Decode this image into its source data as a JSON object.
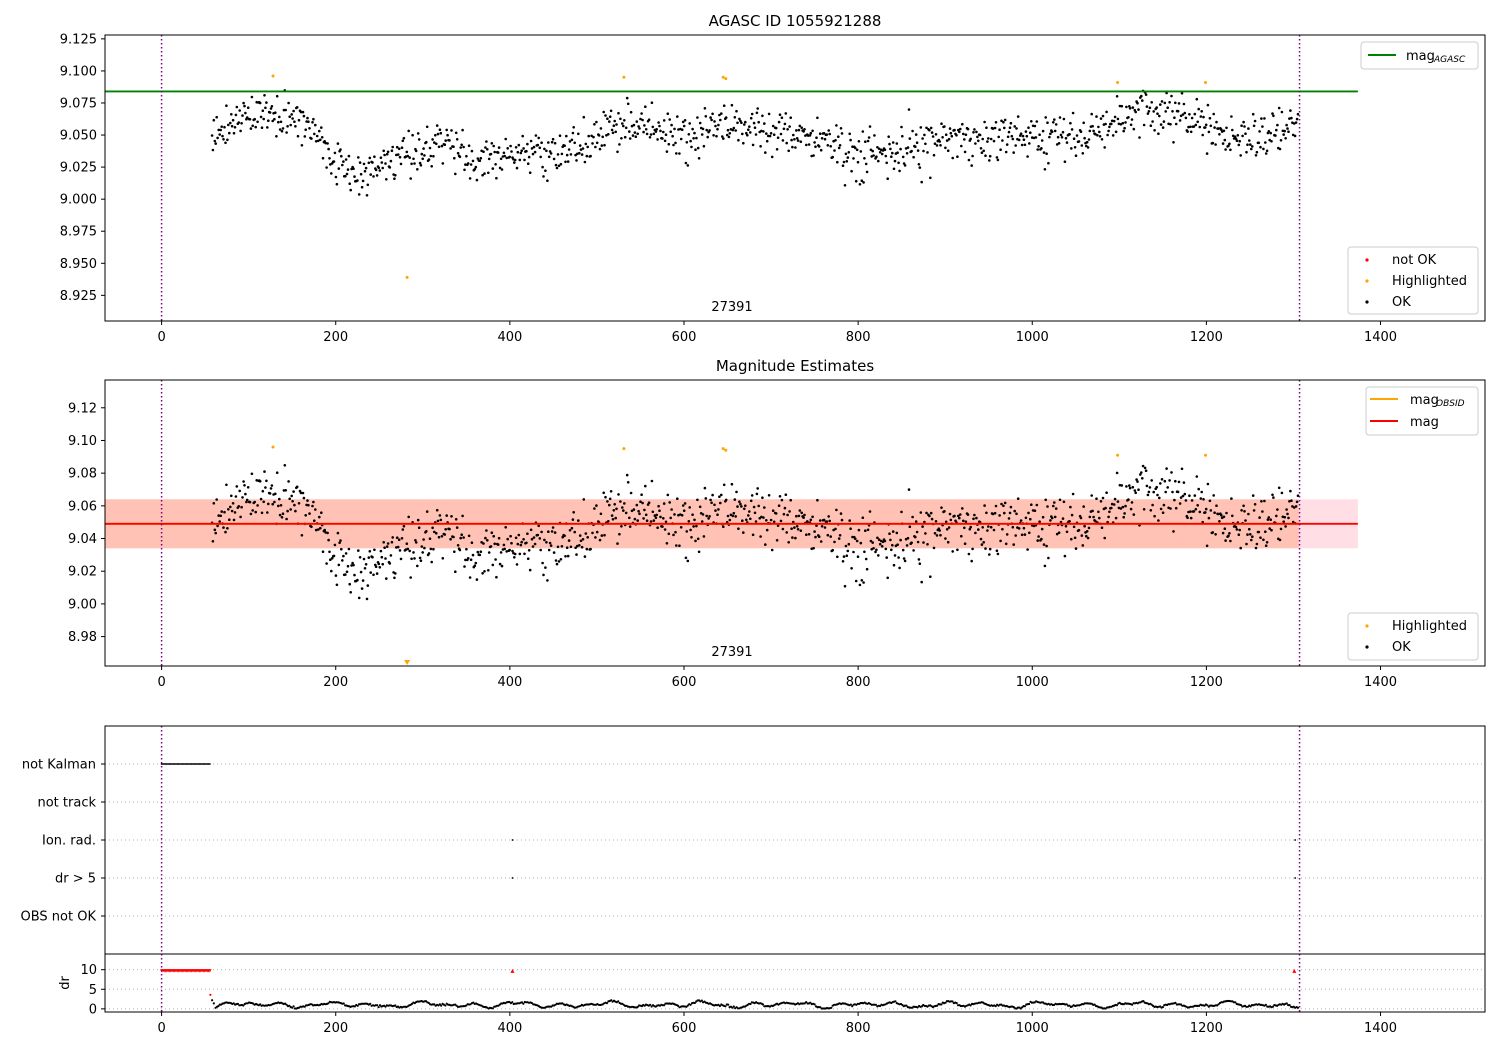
{
  "colors": {
    "ok": "#000000",
    "highlighted": "#ffa500",
    "not_ok": "#ff0000",
    "agasc_line": "#008000",
    "obsid_line": "#ffa500",
    "mag_line": "#ff0000",
    "band_outer": "#ffc0cb",
    "band_inner": "#ffa07a",
    "vline": "#800080"
  },
  "chart_data": [
    {
      "type": "scatter",
      "title": "AGASC ID 1055921288",
      "xlim": [
        -65,
        1520
      ],
      "ylim": [
        8.905,
        9.128
      ],
      "x_ticks": [
        0,
        200,
        400,
        600,
        800,
        1000,
        1200,
        1400
      ],
      "y_ticks": [
        8.925,
        8.95,
        8.975,
        9.0,
        9.025,
        9.05,
        9.075,
        9.1,
        9.125
      ],
      "y_tick_labels": [
        "8.925",
        "8.950",
        "8.975",
        "9.000",
        "9.025",
        "9.050",
        "9.075",
        "9.100",
        "9.125"
      ],
      "obsid_annotation": {
        "text": "27391",
        "x": 655,
        "y": 8.916
      },
      "vlines": [
        0,
        1307
      ],
      "hline": {
        "name": "mag",
        "subscript": "AGASC",
        "y": 9.084,
        "x_range": [
          -65,
          1374
        ]
      },
      "legend_lines": [
        {
          "name": "mag",
          "subscript": "AGASC",
          "color": "#008000"
        }
      ],
      "legend_points": [
        {
          "name": "not OK",
          "color": "#ff0000"
        },
        {
          "name": "Highlighted",
          "color": "#ffa500"
        },
        {
          "name": "OK",
          "color": "#000000"
        }
      ],
      "highlighted": [
        [
          128,
          9.096
        ],
        [
          531,
          9.095
        ],
        [
          645,
          9.095
        ],
        [
          648,
          9.094
        ],
        [
          1098,
          9.091
        ],
        [
          1199,
          9.091
        ],
        [
          282,
          8.939
        ]
      ]
    },
    {
      "type": "scatter",
      "title": "Magnitude Estimates",
      "xlim": [
        -65,
        1520
      ],
      "ylim": [
        8.962,
        9.137
      ],
      "x_ticks": [
        0,
        200,
        400,
        600,
        800,
        1000,
        1200,
        1400
      ],
      "y_ticks": [
        8.98,
        9.0,
        9.02,
        9.04,
        9.06,
        9.08,
        9.1,
        9.12
      ],
      "y_tick_labels": [
        "8.98",
        "9.00",
        "9.02",
        "9.04",
        "9.06",
        "9.08",
        "9.10",
        "9.12"
      ],
      "obsid_annotation": {
        "text": "27391",
        "x": 655,
        "y": 8.968
      },
      "vlines": [
        0,
        1307
      ],
      "mag_line": {
        "y": 9.049,
        "x_range": [
          -65,
          1374
        ]
      },
      "obsid_line": {
        "y": 9.049,
        "x_range": [
          -65,
          1306
        ]
      },
      "band_outer": {
        "y_range": [
          9.034,
          9.064
        ],
        "x_range": [
          -65,
          1374
        ]
      },
      "band_inner": {
        "y_range": [
          9.034,
          9.064
        ],
        "x_range": [
          -65,
          1306
        ]
      },
      "legend_lines": [
        {
          "name": "mag",
          "subscript": "OBSID",
          "color": "#ffa500"
        },
        {
          "name": "mag",
          "subscript": "",
          "color": "#ff0000"
        }
      ],
      "legend_points": [
        {
          "name": "Highlighted",
          "color": "#ffa500"
        },
        {
          "name": "OK",
          "color": "#000000"
        }
      ],
      "highlighted": [
        [
          128,
          9.096
        ],
        [
          531,
          9.095
        ],
        [
          645,
          9.095
        ],
        [
          648,
          9.094
        ],
        [
          1098,
          9.091
        ],
        [
          1199,
          9.091
        ]
      ],
      "off_scale_marker": {
        "x": 282,
        "y": 8.963
      }
    },
    {
      "type": "scatter",
      "title": "",
      "xlim": [
        -65,
        1520
      ],
      "flag_labels": [
        "not Kalman",
        "not track",
        "Ion. rad.",
        "dr > 5",
        "OBS not OK"
      ],
      "flag_segments": [
        {
          "flag": "not Kalman",
          "x_range": [
            0,
            56
          ]
        }
      ],
      "flag_points": [
        {
          "flag": "Ion. rad.",
          "x": 403
        },
        {
          "flag": "Ion. rad.",
          "x": 1302
        },
        {
          "flag": "dr > 5",
          "x": 403
        },
        {
          "flag": "dr > 5",
          "x": 1302
        }
      ],
      "vlines": [
        0,
        1307
      ]
    },
    {
      "type": "scatter",
      "title": "",
      "ylabel": "dr",
      "xlim": [
        -65,
        1520
      ],
      "ylim": [
        -0.8,
        14
      ],
      "x_ticks": [
        0,
        200,
        400,
        600,
        800,
        1000,
        1200,
        1400
      ],
      "y_ticks": [
        0,
        5,
        10
      ],
      "y_tick_labels": [
        "0",
        "5",
        "10"
      ],
      "clipped_red": {
        "y": 9.7,
        "x_range": [
          0,
          56
        ],
        "extra_x": [
          403,
          1301
        ]
      },
      "vlines": [
        0,
        1307
      ]
    }
  ]
}
